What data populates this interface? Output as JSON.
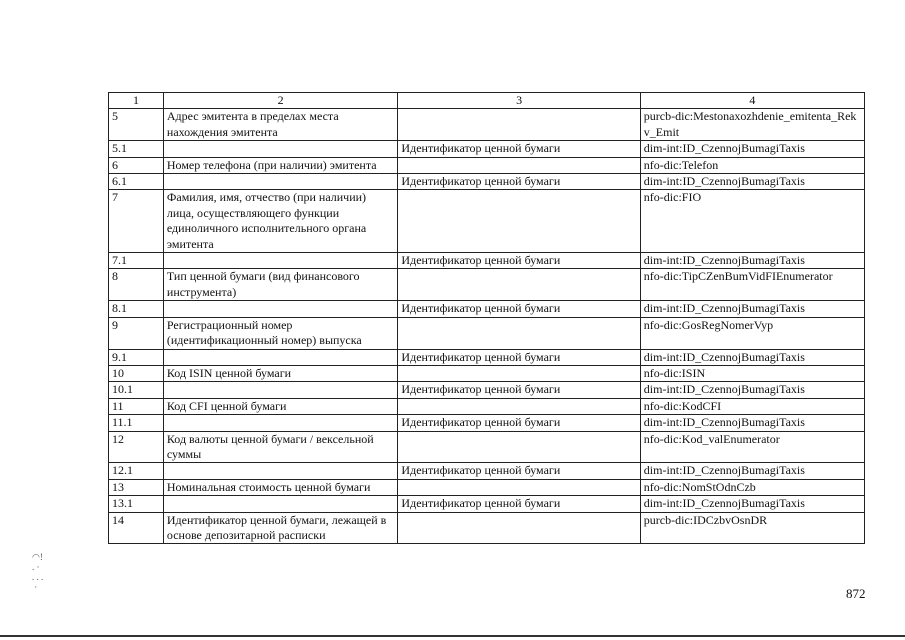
{
  "table": {
    "header": [
      "1",
      "2",
      "3",
      "4"
    ],
    "rows": [
      [
        "5",
        "Адрес эмитента в пределах места нахождения эмитента",
        "",
        "purcb-dic:Mestonaxozhdenie_emitenta_Rekv_Emit"
      ],
      [
        "5.1",
        "",
        "Идентификатор ценной бумаги",
        "dim-int:ID_CzennojBumagiTaxis"
      ],
      [
        "6",
        "Номер телефона (при наличии) эмитента",
        "",
        "nfo-dic:Telefon"
      ],
      [
        "6.1",
        "",
        "Идентификатор ценной бумаги",
        "dim-int:ID_CzennojBumagiTaxis"
      ],
      [
        "7",
        "Фамилия, имя, отчество (при наличии) лица, осуществляющего функции единоличного исполнительного органа эмитента",
        "",
        "nfo-dic:FIO"
      ],
      [
        "7.1",
        "",
        "Идентификатор ценной бумаги",
        "dim-int:ID_CzennojBumagiTaxis"
      ],
      [
        "8",
        "Тип ценной бумаги (вид финансового инструмента)",
        "",
        "nfo-dic:TipCZenBumVidFIEnumerator"
      ],
      [
        "8.1",
        "",
        "Идентификатор ценной бумаги",
        "dim-int:ID_CzennojBumagiTaxis"
      ],
      [
        "9",
        "Регистрационный номер (идентификационный номер) выпуска",
        "",
        "nfo-dic:GosRegNomerVyp"
      ],
      [
        "9.1",
        "",
        "Идентификатор ценной бумаги",
        "dim-int:ID_CzennojBumagiTaxis"
      ],
      [
        "10",
        "Код ISIN ценной бумаги",
        "",
        "nfo-dic:ISIN"
      ],
      [
        "10.1",
        "",
        "Идентификатор ценной бумаги",
        "dim-int:ID_CzennojBumagiTaxis"
      ],
      [
        "11",
        "Код CFI ценной бумаги",
        "",
        "nfo-dic:KodCFI"
      ],
      [
        "11.1",
        "",
        "Идентификатор ценной бумаги",
        "dim-int:ID_CzennojBumagiTaxis"
      ],
      [
        "12",
        "Код валюты ценной бумаги / вексельной суммы",
        "",
        "nfo-dic:Kod_valEnumerator"
      ],
      [
        "12.1",
        "",
        "Идентификатор ценной бумаги",
        "dim-int:ID_CzennojBumagiTaxis"
      ],
      [
        "13",
        "Номинальная стоимость ценной бумаги",
        "",
        "nfo-dic:NomStOdnCzb"
      ],
      [
        "13.1",
        "",
        "Идентификатор ценной бумаги",
        "dim-int:ID_CzennojBumagiTaxis"
      ],
      [
        "14",
        "Идентификатор ценной бумаги, лежащей в основе депозитарной расписки",
        "",
        "purcb-dic:IDCzbvOsnDR"
      ]
    ]
  },
  "page_number": "872"
}
